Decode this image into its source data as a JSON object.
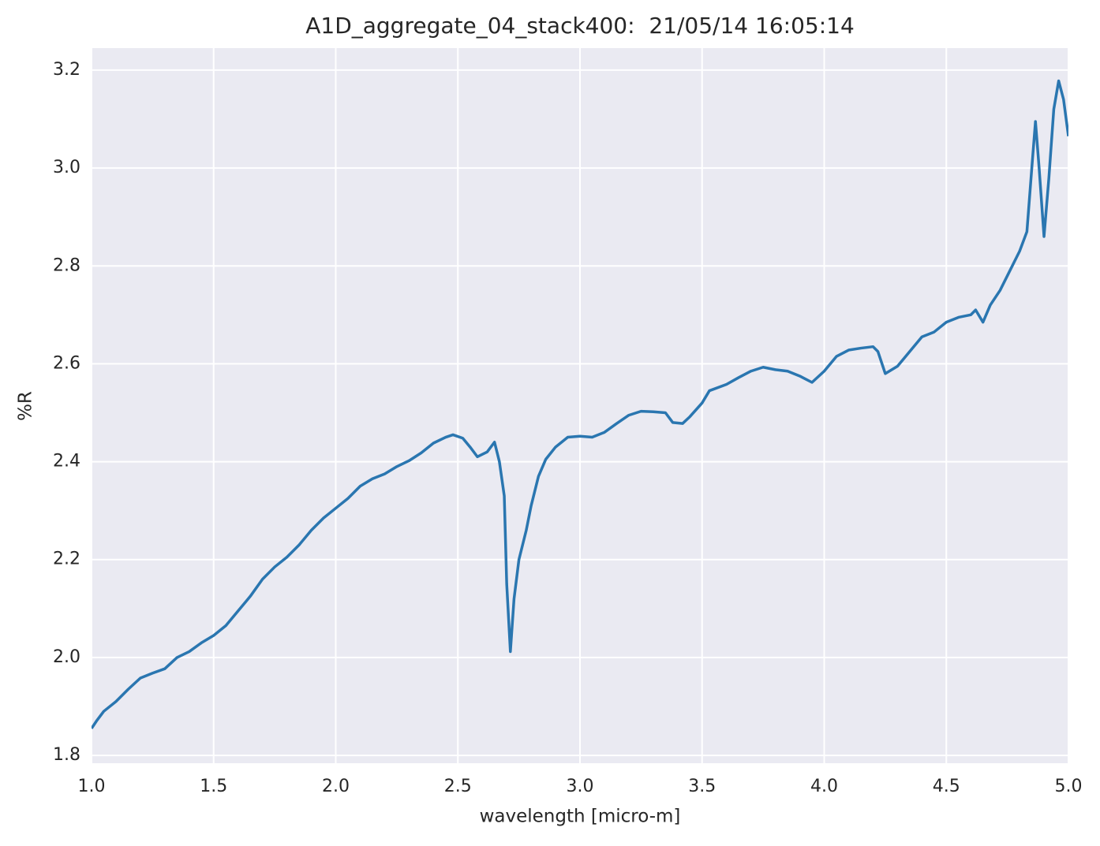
{
  "chart_data": {
    "type": "line",
    "title": "A1D_aggregate_04_stack400:  21/05/14 16:05:14",
    "x_label": "wavelength [micro-m]",
    "y_label": "%R",
    "xlim": [
      1,
      5
    ],
    "ylim": [
      1.784,
      3.245
    ],
    "xticks": [
      {
        "value": 1,
        "label": "1.0"
      },
      1.5,
      {
        "value": 2,
        "label": "2.0"
      },
      2.5,
      {
        "value": 3,
        "label": "3.0"
      },
      3.5,
      {
        "value": 4,
        "label": "4.0"
      },
      4.5,
      {
        "value": 5,
        "label": "5.0"
      }
    ],
    "yticks": [
      1.8,
      {
        "value": 2,
        "label": "2.0"
      },
      2.2,
      2.4,
      2.6,
      2.8,
      {
        "value": 3,
        "label": "3.0"
      },
      3.2
    ],
    "grid": true,
    "background": "#eaeaf2",
    "x": [
      1.0,
      1.02,
      1.05,
      1.1,
      1.15,
      1.2,
      1.25,
      1.3,
      1.35,
      1.4,
      1.45,
      1.5,
      1.55,
      1.6,
      1.65,
      1.7,
      1.75,
      1.8,
      1.85,
      1.9,
      1.95,
      2.0,
      2.05,
      2.1,
      2.15,
      2.2,
      2.25,
      2.3,
      2.35,
      2.4,
      2.45,
      2.48,
      2.52,
      2.55,
      2.58,
      2.62,
      2.65,
      2.67,
      2.69,
      2.7,
      2.715,
      2.73,
      2.75,
      2.78,
      2.8,
      2.83,
      2.86,
      2.9,
      2.95,
      3.0,
      3.05,
      3.1,
      3.15,
      3.2,
      3.25,
      3.3,
      3.35,
      3.38,
      3.42,
      3.45,
      3.5,
      3.53,
      3.6,
      3.65,
      3.7,
      3.75,
      3.8,
      3.85,
      3.9,
      3.95,
      4.0,
      4.05,
      4.1,
      4.15,
      4.2,
      4.22,
      4.25,
      4.3,
      4.35,
      4.4,
      4.45,
      4.5,
      4.55,
      4.6,
      4.62,
      4.65,
      4.68,
      4.72,
      4.75,
      4.8,
      4.83,
      4.85,
      4.865,
      4.88,
      4.9,
      4.92,
      4.94,
      4.96,
      4.98,
      5.0
    ],
    "series": [
      {
        "color": "#2a76b0",
        "values": [
          1.855,
          1.87,
          1.89,
          1.91,
          1.935,
          1.958,
          1.968,
          1.977,
          2.0,
          2.012,
          2.03,
          2.045,
          2.065,
          2.095,
          2.125,
          2.16,
          2.185,
          2.205,
          2.23,
          2.26,
          2.285,
          2.305,
          2.325,
          2.35,
          2.365,
          2.375,
          2.39,
          2.402,
          2.418,
          2.438,
          2.45,
          2.455,
          2.448,
          2.43,
          2.41,
          2.42,
          2.44,
          2.4,
          2.33,
          2.15,
          2.012,
          2.12,
          2.2,
          2.26,
          2.31,
          2.37,
          2.405,
          2.43,
          2.45,
          2.452,
          2.45,
          2.46,
          2.478,
          2.495,
          2.503,
          2.502,
          2.5,
          2.48,
          2.478,
          2.492,
          2.52,
          2.545,
          2.558,
          2.572,
          2.585,
          2.593,
          2.588,
          2.585,
          2.575,
          2.562,
          2.585,
          2.615,
          2.628,
          2.632,
          2.635,
          2.625,
          2.58,
          2.595,
          2.625,
          2.655,
          2.665,
          2.685,
          2.695,
          2.7,
          2.71,
          2.685,
          2.72,
          2.75,
          2.78,
          2.83,
          2.87,
          3.0,
          3.095,
          3.0,
          2.86,
          2.98,
          3.12,
          3.178,
          3.14,
          3.065
        ]
      }
    ]
  }
}
